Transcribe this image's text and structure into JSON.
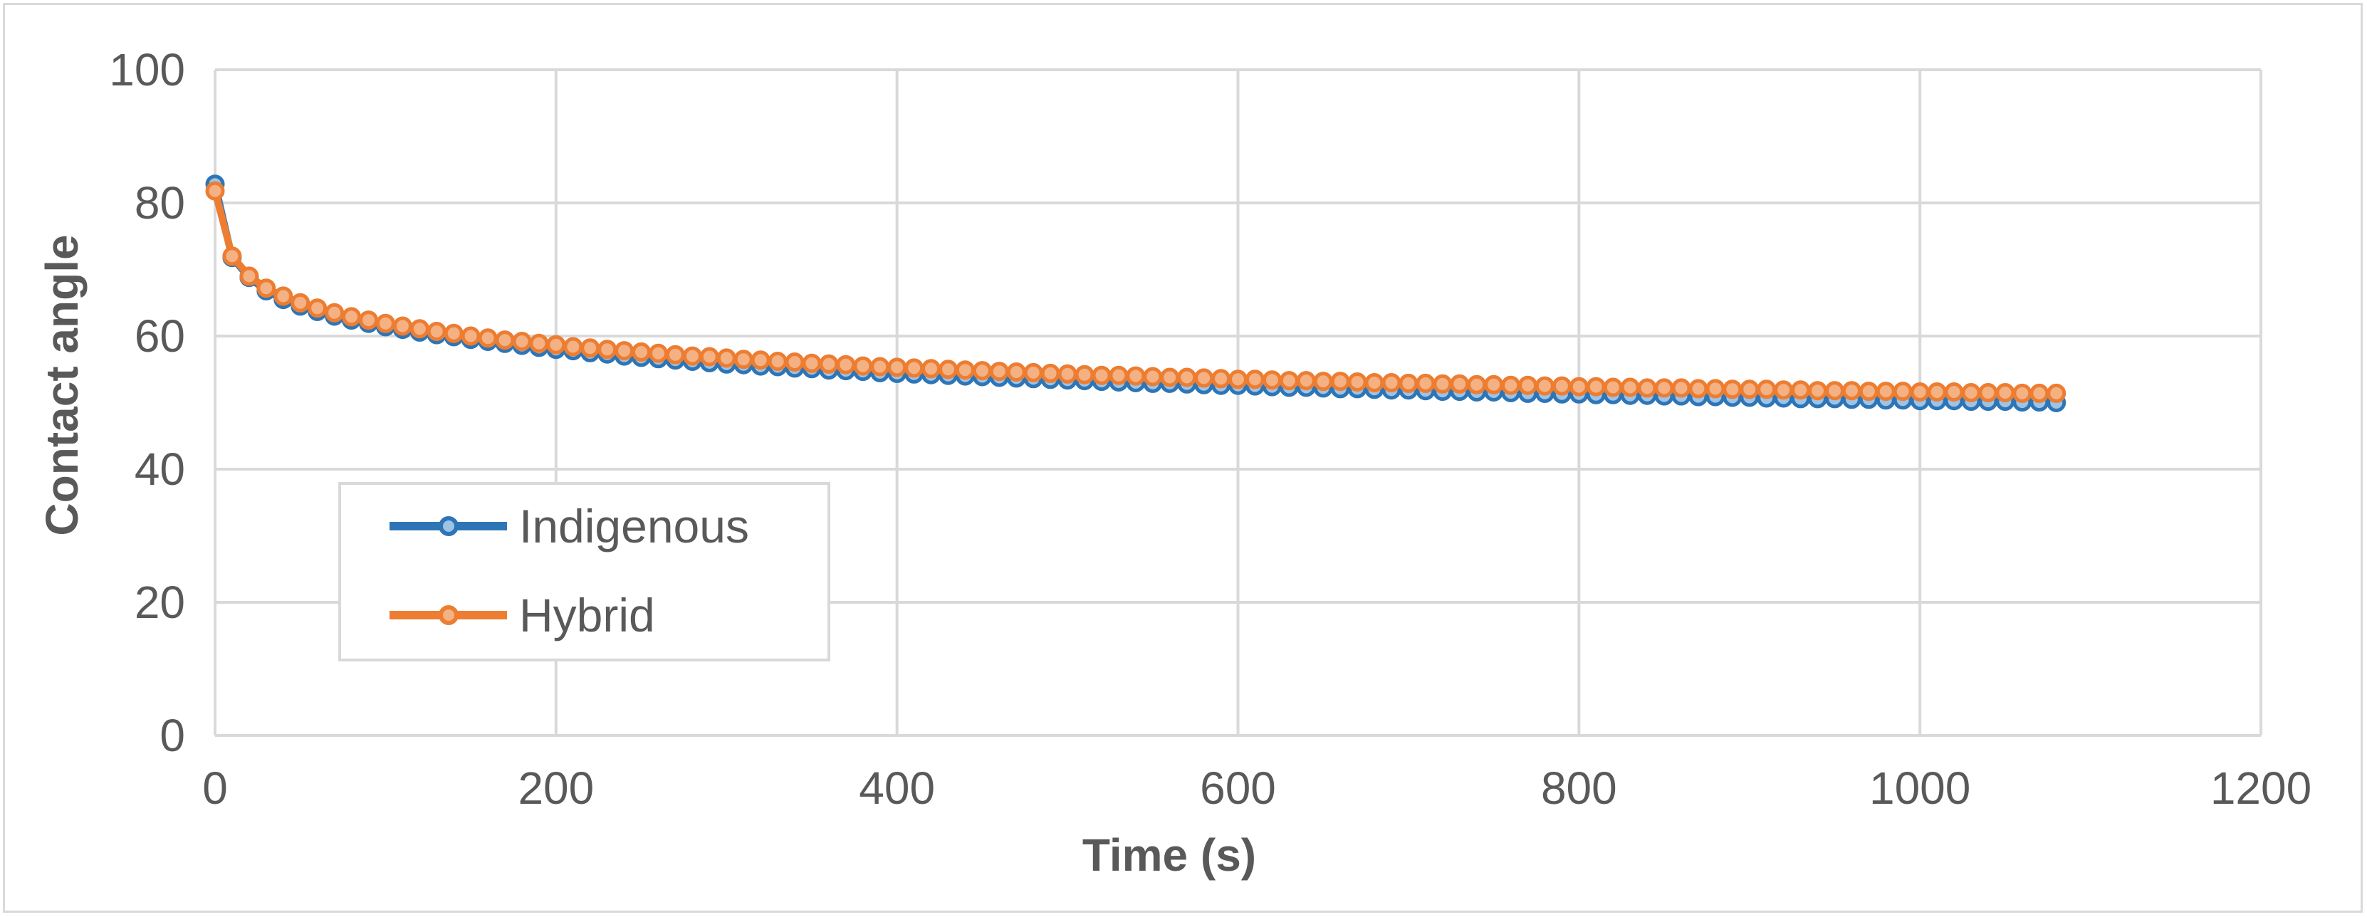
{
  "chart_data": {
    "type": "line",
    "xlabel": "Time (s)",
    "ylabel": "Contact angle",
    "xlim": [
      0,
      1200
    ],
    "ylim": [
      0,
      100
    ],
    "xticks": [
      0,
      200,
      400,
      600,
      800,
      1000,
      1200
    ],
    "yticks": [
      0,
      20,
      40,
      60,
      80,
      100
    ],
    "grid": true,
    "legend_position": "left",
    "x_start": 0,
    "x_step": 10,
    "x_end": 1080,
    "series": [
      {
        "name": "Indigenous",
        "color": "#2e75b6",
        "values": [
          82.8,
          71.8,
          68.8,
          66.8,
          65.5,
          64.5,
          63.7,
          63.0,
          62.4,
          61.9,
          61.4,
          61.0,
          60.6,
          60.2,
          59.9,
          59.5,
          59.2,
          58.9,
          58.6,
          58.3,
          58.0,
          57.8,
          57.5,
          57.3,
          57.0,
          56.8,
          56.6,
          56.4,
          56.2,
          56.0,
          55.8,
          55.7,
          55.5,
          55.4,
          55.2,
          55.1,
          54.9,
          54.8,
          54.7,
          54.5,
          54.4,
          54.3,
          54.2,
          54.1,
          54.0,
          53.9,
          53.8,
          53.7,
          53.6,
          53.5,
          53.4,
          53.3,
          53.2,
          53.1,
          53.0,
          52.9,
          52.9,
          52.8,
          52.7,
          52.6,
          52.6,
          52.5,
          52.4,
          52.3,
          52.3,
          52.2,
          52.1,
          52.1,
          52.0,
          51.9,
          51.9,
          51.8,
          51.7,
          51.7,
          51.6,
          51.6,
          51.5,
          51.4,
          51.4,
          51.3,
          51.3,
          51.2,
          51.2,
          51.1,
          51.1,
          51.0,
          51.0,
          50.9,
          50.9,
          50.8,
          50.8,
          50.7,
          50.7,
          50.6,
          50.6,
          50.6,
          50.5,
          50.5,
          50.4,
          50.4,
          50.3,
          50.3,
          50.3,
          50.2,
          50.2,
          50.2,
          50.1,
          50.1,
          50.0
        ]
      },
      {
        "name": "Hybrid",
        "color": "#ed7d31",
        "values": [
          81.8,
          72.0,
          69.0,
          67.2,
          66.0,
          65.0,
          64.2,
          63.5,
          62.9,
          62.4,
          61.9,
          61.5,
          61.1,
          60.7,
          60.4,
          60.0,
          59.7,
          59.4,
          59.2,
          58.9,
          58.7,
          58.4,
          58.2,
          58.0,
          57.8,
          57.6,
          57.4,
          57.2,
          57.0,
          56.9,
          56.7,
          56.5,
          56.4,
          56.2,
          56.1,
          55.9,
          55.8,
          55.7,
          55.5,
          55.4,
          55.3,
          55.2,
          55.1,
          55.0,
          54.9,
          54.8,
          54.7,
          54.6,
          54.5,
          54.4,
          54.3,
          54.2,
          54.1,
          54.1,
          54.0,
          53.9,
          53.8,
          53.8,
          53.7,
          53.6,
          53.5,
          53.5,
          53.4,
          53.3,
          53.3,
          53.2,
          53.2,
          53.1,
          53.0,
          53.0,
          52.9,
          52.9,
          52.8,
          52.8,
          52.7,
          52.7,
          52.6,
          52.6,
          52.5,
          52.5,
          52.4,
          52.4,
          52.3,
          52.3,
          52.2,
          52.2,
          52.2,
          52.1,
          52.1,
          52.0,
          52.0,
          52.0,
          51.9,
          51.9,
          51.8,
          51.8,
          51.8,
          51.7,
          51.7,
          51.7,
          51.6,
          51.6,
          51.6,
          51.5,
          51.5,
          51.5,
          51.4,
          51.4,
          51.4
        ]
      }
    ]
  }
}
